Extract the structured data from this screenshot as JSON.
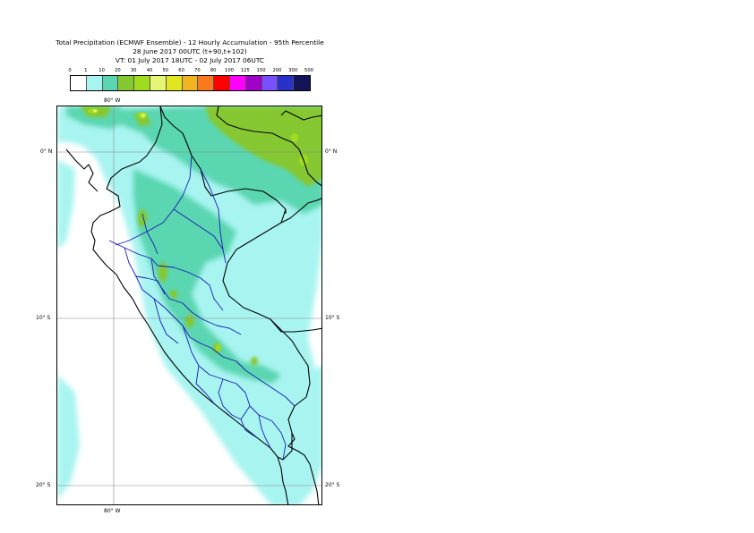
{
  "title": {
    "line1": "Total Precipitation (ECMWF Ensemble) - 12 Hourly Accumulation - 95th Percentile",
    "line2": "28 June 2017 00UTC (t+90,t+102)",
    "line3": "VT: 01 July 2017 18UTC - 02 July 2017 06UTC"
  },
  "legend": {
    "thresholds": [
      "0",
      "1",
      "10",
      "20",
      "30",
      "40",
      "50",
      "60",
      "70",
      "80",
      "100",
      "125",
      "150",
      "200",
      "300",
      "500"
    ],
    "colors": [
      "#ffffff",
      "#a8f4f0",
      "#5ad6b0",
      "#86c832",
      "#a0dc1e",
      "#e6f576",
      "#e1e61e",
      "#f0b41e",
      "#fa781e",
      "#ff0000",
      "#ff00ff",
      "#a000c8",
      "#7850ff",
      "#2832c8",
      "#14145a"
    ]
  },
  "map": {
    "grid_labels": {
      "lon_top": "80° W",
      "lon_bottom": "80° W",
      "lat_0_left": "0° N",
      "lat_0_right": "0° N",
      "lat_10_left": "10° S",
      "lat_10_right": "10° S",
      "lat_20_left": "20° S",
      "lat_20_right": "20° S"
    }
  }
}
